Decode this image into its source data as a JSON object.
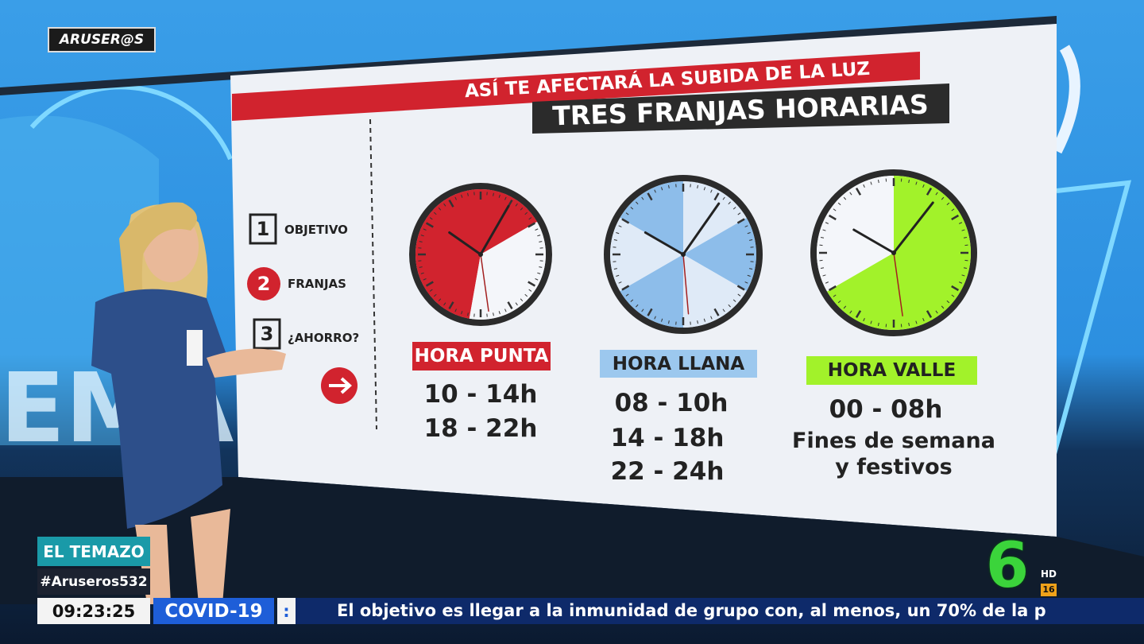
{
  "channel_logo": "ARUSER@S",
  "board": {
    "kicker": "ASÍ TE AFECTARÁ LA SUBIDA DE LA LUZ",
    "title": "TRES FRANJAS HORARIAS",
    "menu": [
      {
        "number": "1",
        "label": "OBJETIVO"
      },
      {
        "number": "2",
        "label": "FRANJAS"
      },
      {
        "number": "3",
        "label": "¿AHORRO?"
      }
    ],
    "clocks": [
      {
        "label": "HORA PUNTA",
        "times": [
          "10 - 14h",
          "18 - 22h"
        ]
      },
      {
        "label": "HORA LLANA",
        "times": [
          "08 - 10h",
          "14 - 18h",
          "22 - 24h"
        ]
      },
      {
        "label": "HORA VALLE",
        "times": [
          "00 - 08h",
          "Fines de semana",
          "y festivos"
        ]
      }
    ]
  },
  "lower_third": {
    "section": "EL TEMAZO",
    "hashtag": "#Aruseros532",
    "clock": "09:23:25",
    "topic": "COVID-19",
    "separator": ":",
    "ticker": "El objetivo es llegar a la inmunidad de grupo con, al menos, un 70% de la p"
  },
  "broadcaster": {
    "logo": "6",
    "quality": "HD",
    "rating": "16"
  }
}
